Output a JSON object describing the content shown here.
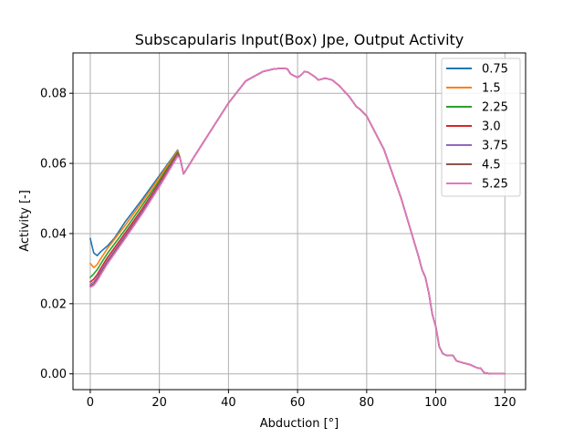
{
  "chart_data": {
    "type": "line",
    "title": "Subscapularis Input(Box) Jpe, Output Activity",
    "xlabel": "Abduction [°]",
    "ylabel": "Activity [-]",
    "xlim": [
      -5,
      126
    ],
    "ylim": [
      -0.0045,
      0.0915
    ],
    "xticks": [
      0,
      20,
      40,
      60,
      80,
      100,
      120
    ],
    "yticks": [
      0.0,
      0.02,
      0.04,
      0.06,
      0.08
    ],
    "ytick_labels": [
      "0.00",
      "0.02",
      "0.04",
      "0.06",
      "0.08"
    ],
    "grid": true,
    "legend_position": "top-right",
    "shared_tail": {
      "x": [
        26,
        27,
        30,
        35,
        40,
        45,
        50,
        53,
        55,
        57,
        58,
        59,
        60,
        61,
        62,
        63,
        65,
        66,
        68,
        70,
        72,
        75,
        77,
        78,
        80,
        85,
        90,
        95,
        96,
        97,
        98,
        99,
        100,
        101,
        102,
        103,
        105,
        106,
        108,
        110,
        112,
        113,
        114,
        116,
        118,
        120
      ],
      "y": [
        0.0615,
        0.057,
        0.0618,
        0.0695,
        0.0772,
        0.0835,
        0.0862,
        0.0869,
        0.0871,
        0.087,
        0.0855,
        0.085,
        0.0845,
        0.0852,
        0.0862,
        0.086,
        0.0847,
        0.0838,
        0.0843,
        0.0838,
        0.0822,
        0.079,
        0.0762,
        0.0755,
        0.0735,
        0.064,
        0.05,
        0.0335,
        0.0298,
        0.0275,
        0.023,
        0.017,
        0.0135,
        0.0078,
        0.0058,
        0.0053,
        0.0052,
        0.0037,
        0.0031,
        0.0026,
        0.0017,
        0.0016,
        0.0003,
        0.0,
        0.0,
        0.0
      ]
    },
    "series": [
      {
        "name": "0.75",
        "color": "#1f77b4",
        "x": [
          0,
          0.5,
          1,
          2,
          3,
          5,
          7,
          10,
          15,
          20,
          25.3
        ],
        "y": [
          0.0386,
          0.0365,
          0.0345,
          0.0337,
          0.0348,
          0.0365,
          0.0387,
          0.0432,
          0.0497,
          0.0565,
          0.0638
        ]
      },
      {
        "name": "1.5",
        "color": "#ff7f0e",
        "x": [
          0,
          1,
          2,
          3,
          5,
          10,
          15,
          20,
          25.3
        ],
        "y": [
          0.0315,
          0.0303,
          0.0312,
          0.0328,
          0.0358,
          0.0422,
          0.049,
          0.056,
          0.0636
        ]
      },
      {
        "name": "2.25",
        "color": "#2ca02c",
        "x": [
          0,
          1,
          2,
          3,
          5,
          10,
          15,
          20,
          25.3
        ],
        "y": [
          0.0275,
          0.0285,
          0.0297,
          0.0313,
          0.0344,
          0.041,
          0.048,
          0.0552,
          0.0632
        ]
      },
      {
        "name": "3.0",
        "color": "#d62728",
        "x": [
          0,
          1,
          2,
          3,
          5,
          10,
          15,
          20,
          25.3
        ],
        "y": [
          0.0262,
          0.027,
          0.0283,
          0.03,
          0.0332,
          0.04,
          0.047,
          0.0545,
          0.0628
        ]
      },
      {
        "name": "3.75",
        "color": "#9467bd",
        "x": [
          0,
          1,
          2,
          3,
          5,
          10,
          15,
          20,
          25.3
        ],
        "y": [
          0.0255,
          0.0262,
          0.0275,
          0.0292,
          0.0324,
          0.0393,
          0.0464,
          0.054,
          0.0625
        ]
      },
      {
        "name": "4.5",
        "color": "#8c564b",
        "x": [
          0,
          1,
          2,
          3,
          5,
          10,
          15,
          20,
          25.3
        ],
        "y": [
          0.025,
          0.0256,
          0.0269,
          0.0286,
          0.0318,
          0.0388,
          0.046,
          0.0536,
          0.0622
        ]
      },
      {
        "name": "5.25",
        "color": "#e377c2",
        "x": [
          0,
          1,
          2,
          3,
          5,
          10,
          15,
          20,
          25.3
        ],
        "y": [
          0.0247,
          0.0252,
          0.0265,
          0.0282,
          0.0314,
          0.0384,
          0.0456,
          0.0533,
          0.062
        ]
      }
    ]
  }
}
